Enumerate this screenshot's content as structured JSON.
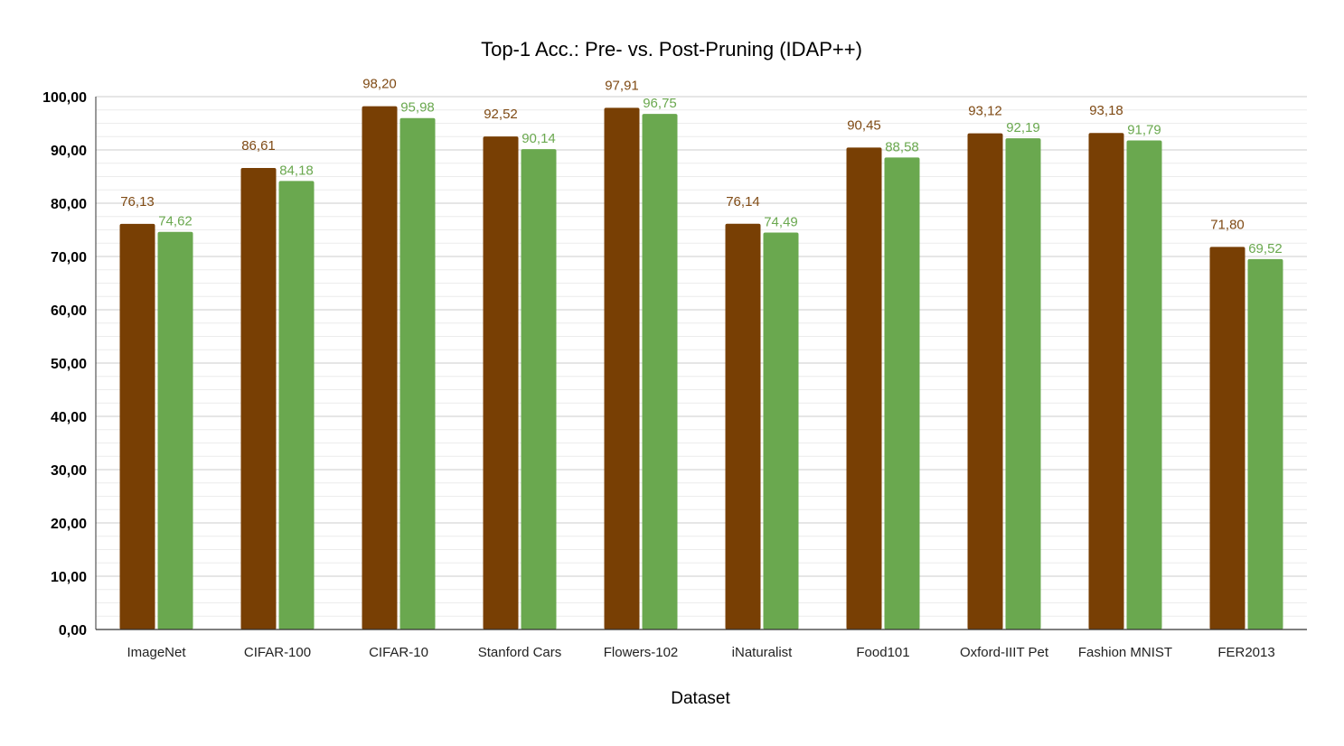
{
  "chart_data": {
    "type": "bar",
    "title": "Top-1 Acc.: Pre- vs. Post-Pruning (IDAP++)",
    "xlabel": "Dataset",
    "ylabel": "",
    "ylim": [
      0,
      100
    ],
    "yticks": [
      "0,00",
      "10,00",
      "20,00",
      "30,00",
      "40,00",
      "50,00",
      "60,00",
      "70,00",
      "80,00",
      "90,00",
      "100,00"
    ],
    "grid": true,
    "categories": [
      "ImageNet",
      "CIFAR-100",
      "CIFAR-10",
      "Stanford Cars",
      "Flowers-102",
      "iNaturalist",
      "Food101",
      "Oxford-IIIT Pet",
      "Fashion MNIST",
      "FER2013"
    ],
    "series": [
      {
        "color": "#783f04",
        "values": [
          76.13,
          86.61,
          98.2,
          92.52,
          97.91,
          76.14,
          90.45,
          93.12,
          93.18,
          71.8
        ],
        "labels": [
          "76,13",
          "86,61",
          "98,20",
          "92,52",
          "97,91",
          "76,14",
          "90,45",
          "93,12",
          "93,18",
          "71,80"
        ]
      },
      {
        "color": "#6aa84f",
        "values": [
          74.62,
          84.18,
          95.98,
          90.14,
          96.75,
          74.49,
          88.58,
          92.19,
          91.79,
          69.52
        ],
        "labels": [
          "74,62",
          "84,18",
          "95,98",
          "90,14",
          "96,75",
          "74,49",
          "88,58",
          "92,19",
          "91,79",
          "69,52"
        ]
      }
    ],
    "label_colors": [
      "#7f4a14",
      "#6aa84f"
    ]
  }
}
